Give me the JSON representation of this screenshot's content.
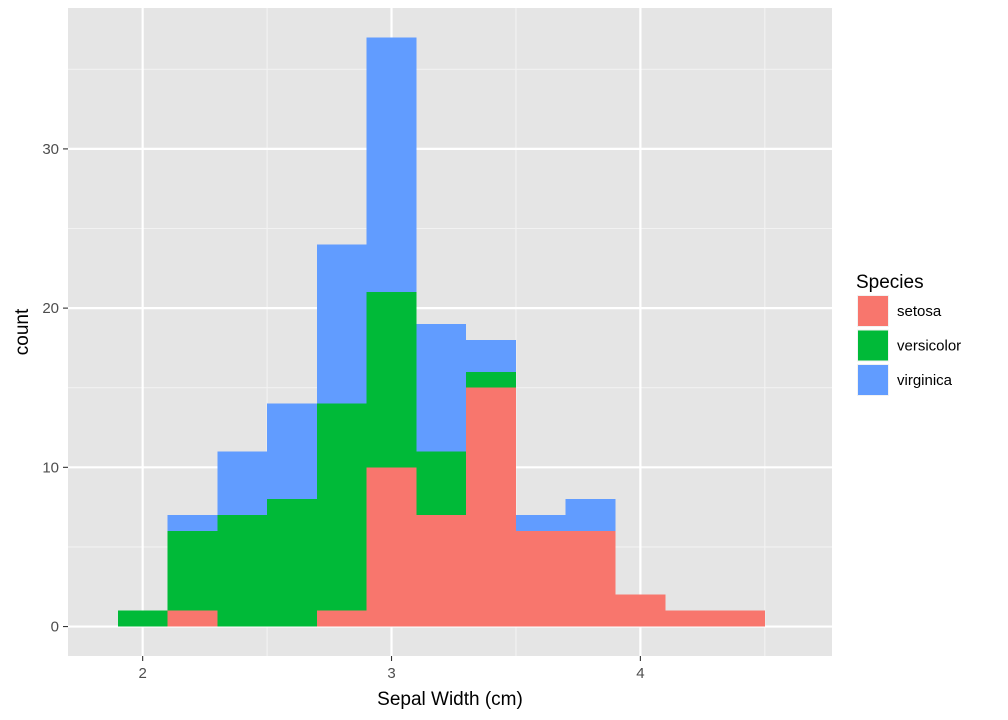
{
  "chart_data": {
    "type": "bar",
    "subtype": "stacked-histogram",
    "title": "",
    "xlabel": "Sepal Width (cm)",
    "ylabel": "count",
    "bin_width": 0.2,
    "bin_starts": [
      1.9,
      2.1,
      2.3,
      2.5,
      2.7,
      2.9,
      3.1,
      3.3,
      3.5,
      3.7,
      3.9,
      4.1,
      4.3,
      4.5
    ],
    "xlim": [
      1.9,
      4.7
    ],
    "ylim": [
      0,
      37
    ],
    "x_ticks": [
      2,
      3,
      4
    ],
    "x_tick_labels": [
      "2",
      "3",
      "4"
    ],
    "y_ticks": [
      0,
      10,
      20,
      30
    ],
    "y_tick_labels": [
      "0",
      "10",
      "20",
      "30"
    ],
    "stack_order": [
      "setosa",
      "versicolor",
      "virginica"
    ],
    "series": [
      {
        "name": "setosa",
        "color": "#F8766D",
        "values": [
          0,
          1,
          0,
          0,
          1,
          10,
          7,
          15,
          6,
          6,
          2,
          1,
          1,
          0
        ]
      },
      {
        "name": "versicolor",
        "color": "#00BA38",
        "values": [
          1,
          5,
          7,
          8,
          13,
          11,
          4,
          1,
          0,
          0,
          0,
          0,
          0,
          0
        ]
      },
      {
        "name": "virginica",
        "color": "#619CFF",
        "values": [
          0,
          1,
          4,
          6,
          10,
          16,
          8,
          2,
          1,
          2,
          0,
          0,
          0,
          0
        ]
      }
    ],
    "legend": {
      "title": "Species",
      "position": "right",
      "items": [
        "setosa",
        "versicolor",
        "virginica"
      ]
    },
    "grid": true,
    "panel_background": "#E5E5E5"
  }
}
